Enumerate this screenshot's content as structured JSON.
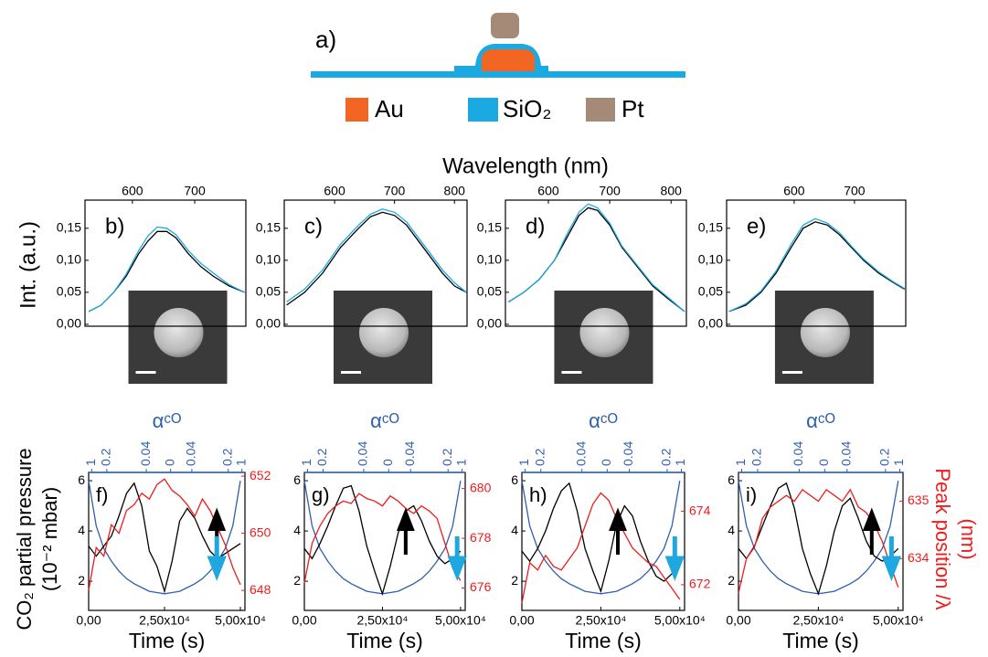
{
  "schematic": {
    "label": "a)",
    "legend": [
      "Au",
      "SiO₂",
      "Pt"
    ]
  },
  "shared": {
    "spectra_xlabel": "Wavelength (nm)",
    "spectra_ylabel": "Int. (a.u.)",
    "time_ylabel": [
      "CO₂ partial pressure",
      "(10⁻² mbar)"
    ],
    "time_y2label": [
      "Peak position /λ",
      "(nm)"
    ]
  },
  "chart_data": [
    {
      "type": "line",
      "label": "b)",
      "x": [
        530,
        550,
        570,
        590,
        610,
        625,
        640,
        655,
        670,
        690,
        710,
        730,
        755,
        780
      ],
      "xlim": [
        524,
        782
      ],
      "xticks": [
        600,
        700
      ],
      "ylim": [
        -0.003,
        0.194
      ],
      "yticks": [
        {
          "value": 0,
          "label": "0,00"
        },
        {
          "value": 0.05,
          "label": "0,05"
        },
        {
          "value": 0.1,
          "label": "0,10"
        },
        {
          "value": 0.15,
          "label": "0,15"
        }
      ],
      "series": [
        {
          "color": "#000000",
          "values": [
            0.02,
            0.03,
            0.05,
            0.075,
            0.11,
            0.13,
            0.145,
            0.145,
            0.135,
            0.11,
            0.09,
            0.075,
            0.06,
            0.05
          ]
        },
        {
          "color": "#1fa8e0",
          "values": [
            0.02,
            0.03,
            0.05,
            0.078,
            0.115,
            0.138,
            0.152,
            0.15,
            0.14,
            0.115,
            0.095,
            0.08,
            0.062,
            0.05
          ]
        }
      ]
    },
    {
      "type": "line",
      "label": "c)",
      "x": [
        520,
        550,
        580,
        610,
        640,
        660,
        680,
        700,
        720,
        740,
        760,
        780,
        800,
        820
      ],
      "xlim": [
        516,
        821
      ],
      "xticks": [
        600,
        700,
        800
      ],
      "ylim": [
        -0.003,
        0.194
      ],
      "yticks": [
        {
          "value": 0,
          "label": "0,00"
        },
        {
          "value": 0.05,
          "label": "0,05"
        },
        {
          "value": 0.1,
          "label": "0,10"
        },
        {
          "value": 0.15,
          "label": "0,15"
        }
      ],
      "series": [
        {
          "color": "#000000",
          "values": [
            0.03,
            0.05,
            0.08,
            0.12,
            0.15,
            0.168,
            0.175,
            0.17,
            0.155,
            0.13,
            0.105,
            0.08,
            0.06,
            0.05
          ]
        },
        {
          "color": "#1fa8e0",
          "values": [
            0.035,
            0.055,
            0.085,
            0.125,
            0.155,
            0.172,
            0.18,
            0.175,
            0.16,
            0.135,
            0.11,
            0.085,
            0.065,
            0.05
          ]
        }
      ]
    },
    {
      "type": "line",
      "label": "d)",
      "x": [
        535,
        560,
        585,
        610,
        630,
        650,
        665,
        680,
        700,
        720,
        745,
        770,
        795,
        822
      ],
      "xlim": [
        530,
        825
      ],
      "xticks": [
        600,
        700,
        800
      ],
      "ylim": [
        -0.003,
        0.194
      ],
      "yticks": [
        {
          "value": 0,
          "label": "0,00"
        },
        {
          "value": 0.05,
          "label": "0,05"
        },
        {
          "value": 0.1,
          "label": "0,10"
        },
        {
          "value": 0.15,
          "label": "0,15"
        }
      ],
      "series": [
        {
          "color": "#000000",
          "values": [
            0.035,
            0.05,
            0.07,
            0.1,
            0.135,
            0.17,
            0.182,
            0.178,
            0.155,
            0.12,
            0.09,
            0.06,
            0.04,
            0.02
          ]
        },
        {
          "color": "#1fa8e0",
          "values": [
            0.035,
            0.05,
            0.07,
            0.1,
            0.14,
            0.175,
            0.188,
            0.182,
            0.158,
            0.122,
            0.092,
            0.062,
            0.042,
            0.02
          ]
        }
      ]
    },
    {
      "type": "line",
      "label": "e)",
      "x": [
        492,
        520,
        545,
        570,
        595,
        615,
        635,
        655,
        675,
        695,
        715,
        740,
        765,
        783
      ],
      "xlim": [
        488,
        785
      ],
      "xticks": [
        600,
        700
      ],
      "ylim": [
        -0.003,
        0.194
      ],
      "yticks": [
        {
          "value": 0,
          "label": "0,00"
        },
        {
          "value": 0.05,
          "label": "0,05"
        },
        {
          "value": 0.1,
          "label": "0,10"
        },
        {
          "value": 0.15,
          "label": "0,15"
        }
      ],
      "series": [
        {
          "color": "#000000",
          "values": [
            0.02,
            0.03,
            0.05,
            0.08,
            0.12,
            0.15,
            0.16,
            0.155,
            0.14,
            0.12,
            0.1,
            0.08,
            0.065,
            0.055
          ]
        },
        {
          "color": "#1fa8e0",
          "values": [
            0.02,
            0.032,
            0.052,
            0.083,
            0.125,
            0.155,
            0.165,
            0.158,
            0.143,
            0.122,
            0.102,
            0.082,
            0.066,
            0.056
          ]
        }
      ]
    },
    {
      "type": "line",
      "label": "f)",
      "xlabel": "Time (s)",
      "x2label": "αᶜᴼ",
      "x": [
        0,
        2500,
        5000,
        7500,
        10000,
        12500,
        15000,
        17500,
        20000,
        22500,
        25000,
        27500,
        30000,
        32500,
        35000,
        37500,
        40000,
        42500,
        45000,
        47500,
        50000
      ],
      "xlim": [
        0,
        51500
      ],
      "xticks": [
        {
          "value": 0,
          "label": "0,00"
        },
        {
          "value": 25000,
          "label": "2,50x10⁴"
        },
        {
          "value": 50000,
          "label": "5,00x10⁴"
        }
      ],
      "x2ticks": [
        {
          "value": 1000,
          "label": "1"
        },
        {
          "value": 6000,
          "label": "0.2"
        },
        {
          "value": 19000,
          "label": "0.04"
        },
        {
          "value": 27000,
          "label": "0"
        },
        {
          "value": 34000,
          "label": "0.04"
        },
        {
          "value": 46000,
          "label": "0.2"
        },
        {
          "value": 50500,
          "label": "1"
        }
      ],
      "ylim": [
        0.84,
        6.33
      ],
      "yticks": [
        2,
        4,
        6
      ],
      "y2lim": [
        647.3,
        652.13
      ],
      "y2ticks": [
        648,
        650,
        652
      ],
      "series": [
        {
          "color": "#2f5fae",
          "values": [
            6.0,
            4.2,
            3.3,
            2.8,
            2.4,
            2.1,
            1.9,
            1.75,
            1.6,
            1.55,
            1.5,
            1.55,
            1.6,
            1.75,
            1.9,
            2.1,
            2.4,
            2.8,
            3.3,
            4.2,
            6.0
          ]
        },
        {
          "color": "#000000",
          "values": [
            3.4,
            3.0,
            3.4,
            3.8,
            4.6,
            5.5,
            5.9,
            5.0,
            3.2,
            2.6,
            1.6,
            2.8,
            4.4,
            4.9,
            4.5,
            3.8,
            3.2,
            2.9,
            3.1,
            3.3,
            3.5
          ]
        },
        {
          "color": "#ee1c1c",
          "axis": "y2",
          "values": [
            648.0,
            649.5,
            649.2,
            650.3,
            650.0,
            650.8,
            651.0,
            651.4,
            651.2,
            651.7,
            651.9,
            651.5,
            651.3,
            651.0,
            650.6,
            651.2,
            650.8,
            650.2,
            649.6,
            648.8,
            648.2
          ]
        }
      ]
    },
    {
      "type": "line",
      "label": "g)",
      "xlabel": "Time (s)",
      "x2label": "αᶜᴼ",
      "x": [
        0,
        2500,
        5000,
        7500,
        10000,
        12500,
        15000,
        17500,
        20000,
        22500,
        25000,
        27500,
        30000,
        32500,
        35000,
        37500,
        40000,
        42500,
        45000,
        47500,
        50000
      ],
      "xlim": [
        0,
        51500
      ],
      "xticks": [
        {
          "value": 0,
          "label": "0,00"
        },
        {
          "value": 25000,
          "label": "2,50x10⁴"
        },
        {
          "value": 50000,
          "label": "5,00x10⁴"
        }
      ],
      "x2ticks": [
        {
          "value": 1000,
          "label": "1"
        },
        {
          "value": 6000,
          "label": "0.2"
        },
        {
          "value": 19000,
          "label": "0.04"
        },
        {
          "value": 27000,
          "label": "0"
        },
        {
          "value": 34000,
          "label": "0.04"
        },
        {
          "value": 46000,
          "label": "0.2"
        },
        {
          "value": 50500,
          "label": "1"
        }
      ],
      "ylim": [
        0.84,
        6.33
      ],
      "yticks": [
        2,
        4,
        6
      ],
      "y2lim": [
        675.1,
        680.65
      ],
      "y2ticks": [
        676,
        678,
        680
      ],
      "series": [
        {
          "color": "#2f5fae",
          "values": [
            6.0,
            4.2,
            3.3,
            2.8,
            2.4,
            2.1,
            1.9,
            1.75,
            1.6,
            1.55,
            1.5,
            1.55,
            1.6,
            1.75,
            1.9,
            2.1,
            2.4,
            2.8,
            3.3,
            4.2,
            6.0
          ]
        },
        {
          "color": "#000000",
          "values": [
            3.3,
            2.9,
            3.5,
            4.2,
            5.0,
            5.7,
            5.8,
            4.8,
            3.4,
            2.4,
            1.5,
            2.6,
            3.9,
            4.8,
            5.0,
            4.4,
            3.6,
            3.0,
            2.7,
            2.9,
            3.2
          ]
        },
        {
          "color": "#ee1c1c",
          "axis": "y2",
          "values": [
            676.2,
            677.8,
            678.5,
            679.0,
            679.3,
            679.5,
            679.4,
            679.8,
            679.6,
            679.5,
            679.3,
            679.7,
            679.5,
            679.2,
            679.0,
            679.3,
            679.1,
            678.8,
            677.8,
            676.8,
            676.3
          ]
        }
      ]
    },
    {
      "type": "line",
      "label": "h)",
      "xlabel": "Time (s)",
      "x2label": "αᶜᴼ",
      "x": [
        0,
        2500,
        5000,
        7500,
        10000,
        12500,
        15000,
        17500,
        20000,
        22500,
        25000,
        27500,
        30000,
        32500,
        35000,
        37500,
        40000,
        42500,
        45000,
        47500,
        50000
      ],
      "xlim": [
        0,
        51500
      ],
      "xticks": [
        {
          "value": 0,
          "label": "0,00"
        },
        {
          "value": 25000,
          "label": "2,50x10⁴"
        },
        {
          "value": 50000,
          "label": "5,00x10⁴"
        }
      ],
      "x2ticks": [
        {
          "value": 1000,
          "label": "1"
        },
        {
          "value": 6000,
          "label": "0.2"
        },
        {
          "value": 19000,
          "label": "0.04"
        },
        {
          "value": 27000,
          "label": "0"
        },
        {
          "value": 34000,
          "label": "0.04"
        },
        {
          "value": 46000,
          "label": "0.2"
        },
        {
          "value": 50500,
          "label": "1"
        }
      ],
      "ylim": [
        0.84,
        6.33
      ],
      "yticks": [
        2,
        4,
        6
      ],
      "y2lim": [
        671.3,
        675.06
      ],
      "y2ticks": [
        672,
        674
      ],
      "series": [
        {
          "color": "#2f5fae",
          "values": [
            6.0,
            4.2,
            3.3,
            2.8,
            2.4,
            2.1,
            1.9,
            1.75,
            1.6,
            1.55,
            1.5,
            1.55,
            1.6,
            1.75,
            1.9,
            2.1,
            2.4,
            2.8,
            3.3,
            4.2,
            6.0
          ]
        },
        {
          "color": "#000000",
          "values": [
            3.2,
            2.8,
            3.3,
            4.0,
            4.9,
            5.6,
            5.9,
            4.8,
            3.3,
            2.4,
            1.6,
            2.8,
            4.3,
            5.0,
            4.6,
            3.6,
            2.8,
            2.2,
            2.0,
            2.3,
            2.6
          ]
        },
        {
          "color": "#ee1c1c",
          "axis": "y2",
          "values": [
            671.5,
            672.6,
            672.4,
            672.8,
            672.5,
            672.4,
            672.7,
            673.0,
            673.6,
            674.2,
            674.5,
            674.3,
            673.8,
            673.4,
            673.0,
            672.8,
            672.6,
            672.5,
            672.2,
            671.9,
            671.6
          ]
        }
      ]
    },
    {
      "type": "line",
      "label": "i)",
      "xlabel": "Time (s)",
      "x2label": "αᶜᴼ",
      "x": [
        0,
        2500,
        5000,
        7500,
        10000,
        12500,
        15000,
        17500,
        20000,
        22500,
        25000,
        27500,
        30000,
        32500,
        35000,
        37500,
        40000,
        42500,
        45000,
        47500,
        50000
      ],
      "xlim": [
        0,
        51500
      ],
      "xticks": [
        {
          "value": 0,
          "label": "0,00"
        },
        {
          "value": 25000,
          "label": "2,50x10⁴"
        },
        {
          "value": 50000,
          "label": "5,00x10⁴"
        }
      ],
      "x2ticks": [
        {
          "value": 1000,
          "label": "1"
        },
        {
          "value": 6000,
          "label": "0.2"
        },
        {
          "value": 19000,
          "label": "0.04"
        },
        {
          "value": 27000,
          "label": "0"
        },
        {
          "value": 34000,
          "label": "0.04"
        },
        {
          "value": 46000,
          "label": "0.2"
        },
        {
          "value": 50500,
          "label": "1"
        }
      ],
      "ylim": [
        0.84,
        6.33
      ],
      "yticks": [
        2,
        4,
        6
      ],
      "y2lim": [
        633.1,
        635.5
      ],
      "y2ticks": [
        634,
        635
      ],
      "series": [
        {
          "color": "#2f5fae",
          "values": [
            6.0,
            4.2,
            3.3,
            2.8,
            2.4,
            2.1,
            1.9,
            1.75,
            1.6,
            1.55,
            1.5,
            1.55,
            1.6,
            1.75,
            1.9,
            2.1,
            2.4,
            2.8,
            3.3,
            4.2,
            6.0
          ]
        },
        {
          "color": "#000000",
          "values": [
            3.3,
            2.9,
            3.4,
            4.2,
            5.0,
            5.7,
            5.9,
            4.9,
            3.3,
            2.3,
            1.5,
            2.6,
            4.0,
            5.0,
            5.3,
            4.5,
            3.6,
            3.0,
            2.8,
            3.0,
            3.3
          ]
        },
        {
          "color": "#ee1c1c",
          "axis": "y2",
          "values": [
            633.4,
            634.0,
            634.2,
            634.7,
            634.9,
            635.0,
            635.1,
            635.0,
            635.2,
            635.1,
            635.0,
            635.2,
            635.1,
            635.0,
            635.2,
            634.9,
            634.8,
            634.6,
            634.3,
            633.9,
            633.5
          ]
        }
      ]
    }
  ]
}
